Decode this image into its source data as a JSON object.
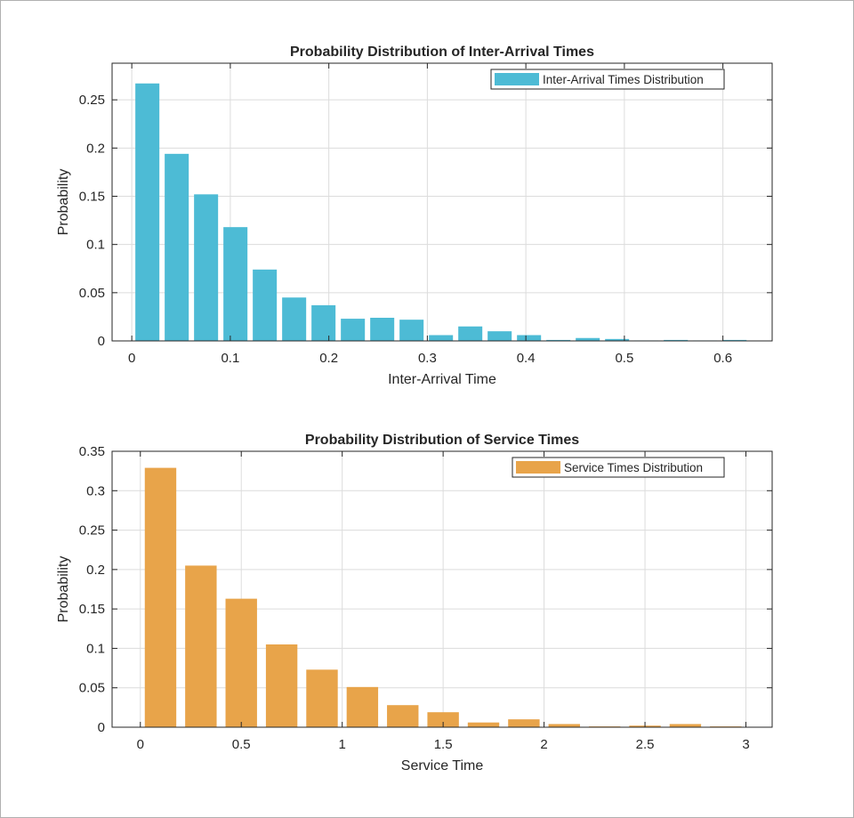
{
  "chart_data": [
    {
      "type": "bar",
      "title": "Probability Distribution of Inter-Arrival Times",
      "xlabel": "Inter-Arrival Time",
      "ylabel": "Probability",
      "xlim": [
        -0.02,
        0.65
      ],
      "ylim": [
        0,
        0.288
      ],
      "xticks": [
        0,
        0.1,
        0.2,
        0.3,
        0.4,
        0.5,
        0.6
      ],
      "yticks": [
        0,
        0.05,
        0.1,
        0.15,
        0.2,
        0.25
      ],
      "grid": true,
      "legend_position": "top-right",
      "series": [
        {
          "name": "Inter-Arrival Times Distribution",
          "color": "#4DBBD5",
          "x": [
            0.0158,
            0.0456,
            0.0754,
            0.1052,
            0.135,
            0.1648,
            0.1946,
            0.2244,
            0.2542,
            0.284,
            0.3138,
            0.3436,
            0.3734,
            0.4032,
            0.433,
            0.4628,
            0.4926,
            0.5224,
            0.5522,
            0.582,
            0.6118
          ],
          "values": [
            0.267,
            0.194,
            0.152,
            0.118,
            0.074,
            0.045,
            0.037,
            0.023,
            0.024,
            0.022,
            0.006,
            0.015,
            0.01,
            0.006,
            0.001,
            0.003,
            0.002,
            0.0005,
            0.001,
            0.0005,
            0.001
          ]
        }
      ]
    },
    {
      "type": "bar",
      "title": "Probability Distribution of Service Times",
      "xlabel": "Service Time",
      "ylabel": "Probability",
      "xlim": [
        -0.14,
        3.13
      ],
      "ylim": [
        0,
        0.35
      ],
      "xticks": [
        0,
        0.5,
        1,
        1.5,
        2,
        2.5,
        3
      ],
      "yticks": [
        0,
        0.05,
        0.1,
        0.15,
        0.2,
        0.25,
        0.3,
        0.35
      ],
      "grid": true,
      "legend_position": "top-right",
      "series": [
        {
          "name": "Service Times Distribution",
          "color": "#E8A44A",
          "x": [
            0.1,
            0.3,
            0.5,
            0.7,
            0.9,
            1.1,
            1.3,
            1.5,
            1.7,
            1.9,
            2.1,
            2.3,
            2.5,
            2.7,
            2.9
          ],
          "values": [
            0.329,
            0.205,
            0.163,
            0.105,
            0.073,
            0.051,
            0.028,
            0.019,
            0.006,
            0.01,
            0.004,
            0.001,
            0.002,
            0.004,
            0.001
          ]
        }
      ]
    }
  ]
}
